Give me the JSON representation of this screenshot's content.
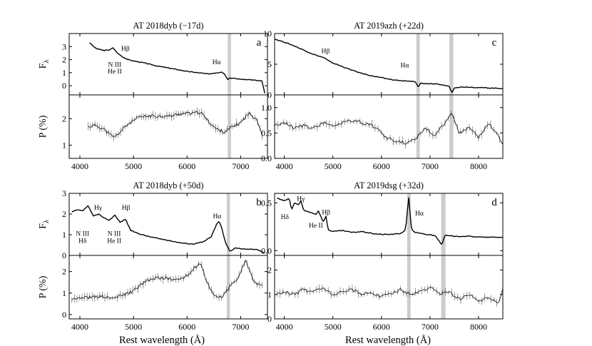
{
  "xlabel": "Rest wavelength (Å)",
  "chart_data": [
    {
      "panel": "a",
      "title": "AT 2018dyb    (−17d)",
      "type": "line",
      "xlim": [
        3800,
        7500
      ],
      "xticks": [
        "4000",
        "5000",
        "6000",
        "7000"
      ],
      "band": [
        6760,
        6820
      ],
      "flux": {
        "ylabel": "F",
        "ylabel_sub": "λ",
        "ylim": [
          -0.7,
          4.0
        ],
        "yticks": [
          "0",
          "1",
          "2",
          "3"
        ],
        "x": [
          4180,
          4300,
          4450,
          4550,
          4620,
          4700,
          4800,
          4900,
          5000,
          5200,
          5400,
          5600,
          5800,
          6000,
          6200,
          6400,
          6550,
          6650,
          6700,
          6760,
          6800,
          7000,
          7200,
          7400,
          7450
        ],
        "y": [
          3.3,
          2.85,
          2.7,
          2.75,
          2.9,
          2.5,
          2.2,
          2.0,
          1.9,
          1.75,
          1.55,
          1.4,
          1.25,
          1.1,
          1.0,
          0.9,
          1.0,
          1.05,
          0.9,
          0.5,
          0.6,
          0.5,
          0.45,
          0.35,
          -0.6
        ],
        "annotations": [
          {
            "text": "Hβ",
            "x": 4850,
            "y": 2.7
          },
          {
            "text": "N III",
            "x": 4650,
            "y": 1.45
          },
          {
            "text": "He II",
            "x": 4650,
            "y": 0.95
          },
          {
            "text": "Hα",
            "x": 6550,
            "y": 1.65
          }
        ]
      },
      "pol": {
        "ylabel": "P (%)",
        "ylim": [
          0.5,
          2.9
        ],
        "yticks": [
          "1",
          "2"
        ],
        "x": [
          4150,
          4300,
          4450,
          4550,
          4650,
          4750,
          4900,
          5100,
          5300,
          5500,
          5700,
          5900,
          6100,
          6250,
          6400,
          6550,
          6700,
          6850,
          7000,
          7150,
          7300,
          7400
        ],
        "y": [
          1.7,
          1.75,
          1.6,
          1.4,
          1.3,
          1.5,
          1.8,
          2.05,
          2.1,
          2.1,
          2.1,
          2.2,
          2.2,
          2.25,
          1.9,
          1.6,
          1.5,
          1.7,
          1.85,
          2.2,
          2.0,
          1.4
        ]
      }
    },
    {
      "panel": "c",
      "title": "AT 2019azh    (+22d)",
      "type": "line",
      "xlim": [
        3800,
        8500
      ],
      "xticks": [
        "4000",
        "5000",
        "6000",
        "7000",
        "8000"
      ],
      "bands": [
        [
          6720,
          6790
        ],
        [
          7400,
          7480
        ]
      ],
      "flux": {
        "ylim": [
          0,
          10
        ],
        "yticks": [
          "0",
          "5",
          "10"
        ],
        "x": [
          3800,
          4000,
          4200,
          4400,
          4600,
          4800,
          4850,
          4900,
          5000,
          5200,
          5400,
          5600,
          5800,
          6000,
          6200,
          6400,
          6600,
          6700,
          6760,
          6800,
          7000,
          7200,
          7400,
          7450,
          7500,
          7700,
          8000,
          8300,
          8500
        ],
        "y": [
          9.1,
          8.6,
          8.0,
          7.3,
          6.6,
          6.1,
          5.9,
          5.6,
          5.2,
          4.6,
          4.0,
          3.5,
          3.1,
          2.8,
          2.5,
          2.3,
          2.2,
          2.15,
          1.2,
          1.9,
          1.8,
          1.7,
          1.4,
          0.3,
          1.2,
          1.3,
          1.2,
          1.1,
          1.05
        ],
        "annotations": [
          {
            "text": "Hβ",
            "x": 4850,
            "y": 6.8
          },
          {
            "text": "Hα",
            "x": 6480,
            "y": 4.5
          }
        ]
      },
      "pol": {
        "ylim": [
          0,
          1.25
        ],
        "yticks": [
          "0.0",
          "0.5",
          "1.0"
        ],
        "x": [
          3800,
          4000,
          4200,
          4400,
          4600,
          4800,
          5000,
          5200,
          5400,
          5600,
          5800,
          5950,
          6100,
          6300,
          6500,
          6700,
          6900,
          7100,
          7300,
          7450,
          7600,
          7800,
          8000,
          8200,
          8400,
          8500
        ],
        "y": [
          0.65,
          0.7,
          0.6,
          0.65,
          0.6,
          0.7,
          0.65,
          0.7,
          0.75,
          0.7,
          0.65,
          0.55,
          0.4,
          0.35,
          0.3,
          0.4,
          0.6,
          0.45,
          0.7,
          0.9,
          0.5,
          0.6,
          0.4,
          0.7,
          0.45,
          0.3
        ]
      }
    },
    {
      "panel": "b",
      "title": "AT 2018dyb    (+50d)",
      "type": "line",
      "xlim": [
        3800,
        7500
      ],
      "xticks": [
        "4000",
        "5000",
        "6000",
        "7000"
      ],
      "band": [
        6740,
        6800
      ],
      "flux": {
        "ylabel": "F",
        "ylabel_sub": "λ",
        "ylim": [
          0,
          3
        ],
        "yticks": [
          "0",
          "1",
          "2",
          "3"
        ],
        "x": [
          3850,
          3950,
          4050,
          4150,
          4250,
          4350,
          4450,
          4550,
          4650,
          4750,
          4850,
          4950,
          5100,
          5300,
          5500,
          5700,
          5900,
          6100,
          6300,
          6450,
          6550,
          6600,
          6650,
          6720,
          6800,
          6900,
          7100,
          7300,
          7450
        ],
        "y": [
          2.1,
          2.2,
          2.15,
          2.4,
          1.9,
          2.0,
          1.8,
          1.7,
          1.95,
          1.6,
          1.75,
          1.2,
          1.05,
          0.9,
          0.8,
          0.7,
          0.6,
          0.55,
          0.65,
          0.9,
          1.5,
          1.65,
          1.3,
          0.6,
          0.2,
          0.35,
          0.3,
          0.3,
          0.1
        ],
        "annotations": [
          {
            "text": "Hγ",
            "x": 4340,
            "y": 2.2
          },
          {
            "text": "Hβ",
            "x": 4860,
            "y": 2.2
          },
          {
            "text": "N III",
            "x": 4050,
            "y": 0.95
          },
          {
            "text": "Hδ",
            "x": 4050,
            "y": 0.6
          },
          {
            "text": "N III",
            "x": 4640,
            "y": 0.95
          },
          {
            "text": "He II",
            "x": 4640,
            "y": 0.6
          },
          {
            "text": "Hα",
            "x": 6560,
            "y": 1.8
          }
        ]
      },
      "pol": {
        "ylabel": "P (%)",
        "ylim": [
          -0.2,
          2.75
        ],
        "yticks": [
          "0",
          "1",
          "2"
        ],
        "x": [
          3850,
          4000,
          4200,
          4400,
          4600,
          4800,
          5000,
          5200,
          5400,
          5600,
          5800,
          6000,
          6150,
          6250,
          6350,
          6500,
          6650,
          6800,
          6950,
          7100,
          7250,
          7400
        ],
        "y": [
          0.75,
          0.8,
          0.8,
          0.85,
          0.75,
          0.9,
          1.1,
          1.5,
          1.7,
          1.7,
          1.6,
          1.8,
          2.2,
          2.4,
          1.6,
          0.9,
          0.8,
          1.3,
          1.7,
          2.5,
          1.5,
          1.3
        ]
      }
    },
    {
      "panel": "d",
      "title": "AT 2019dsg    (+32d)",
      "type": "line",
      "xlim": [
        3800,
        8500
      ],
      "xticks": [
        "4000",
        "5000",
        "6000",
        "7000",
        "8000"
      ],
      "bands": [
        [
          6530,
          6600
        ],
        [
          7230,
          7320
        ]
      ],
      "flux": {
        "ylim": [
          -0.05,
          0.6
        ],
        "yticks": [
          "0.0",
          "0.5"
        ],
        "x": [
          3850,
          4000,
          4100,
          4150,
          4200,
          4300,
          4340,
          4400,
          4550,
          4650,
          4700,
          4800,
          4860,
          4900,
          5000,
          5200,
          5400,
          5600,
          5800,
          6000,
          6200,
          6400,
          6500,
          6560,
          6620,
          6700,
          6900,
          7100,
          7250,
          7300,
          7500,
          7800,
          8100,
          8500
        ],
        "y": [
          0.55,
          0.52,
          0.55,
          0.42,
          0.5,
          0.48,
          0.52,
          0.42,
          0.4,
          0.38,
          0.42,
          0.3,
          0.36,
          0.22,
          0.2,
          0.21,
          0.19,
          0.2,
          0.18,
          0.17,
          0.17,
          0.18,
          0.22,
          0.57,
          0.22,
          0.19,
          0.17,
          0.16,
          0.06,
          0.16,
          0.15,
          0.15,
          0.14,
          0.14
        ],
        "annotations": [
          {
            "text": "Hγ",
            "x": 4340,
            "y": 0.52
          },
          {
            "text": "Hδ",
            "x": 4010,
            "y": 0.33
          },
          {
            "text": "Hβ",
            "x": 4860,
            "y": 0.38
          },
          {
            "text": "He II",
            "x": 4650,
            "y": 0.24
          },
          {
            "text": "Hα",
            "x": 6780,
            "y": 0.37
          }
        ]
      },
      "pol": {
        "ylim": [
          0,
          2.6
        ],
        "yticks": [
          "0",
          "1",
          "2"
        ],
        "x": [
          3850,
          4000,
          4200,
          4400,
          4600,
          4800,
          5000,
          5200,
          5400,
          5600,
          5800,
          6000,
          6200,
          6400,
          6600,
          6800,
          7000,
          7200,
          7400,
          7600,
          7800,
          8000,
          8200,
          8400,
          8500
        ],
        "y": [
          1.0,
          1.1,
          1.0,
          1.2,
          1.1,
          1.3,
          1.0,
          1.15,
          1.2,
          1.0,
          1.1,
          0.9,
          1.05,
          1.2,
          1.0,
          1.1,
          1.3,
          1.0,
          1.1,
          0.8,
          1.0,
          0.7,
          0.9,
          0.6,
          1.2
        ]
      }
    }
  ]
}
